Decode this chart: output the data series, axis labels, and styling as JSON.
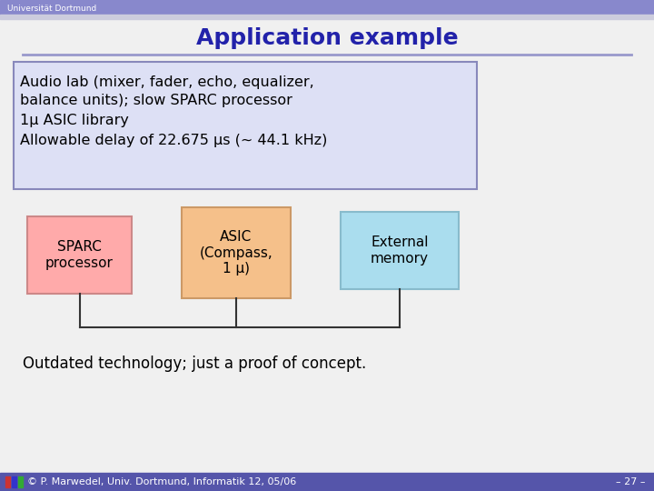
{
  "background_color": "#f0f0f0",
  "header_bar_color": "#8888cc",
  "header_text": "Universität Dortmund",
  "title": "Application example",
  "title_color": "#2222aa",
  "title_fontsize": 18,
  "divider_color": "#9999cc",
  "info_box_bg": "#dde0f5",
  "info_box_border": "#8888bb",
  "info_line1": "Audio lab (mixer, fader, echo, equalizer,",
  "info_line2": "balance units); slow SPARC processor",
  "info_line3": "1μ ASIC library",
  "info_line4": "Allowable delay of 22.675 μs (~ 44.1 kHz)",
  "sparc_box_bg": "#ffaaaa",
  "sparc_box_border": "#cc8888",
  "sparc_text": "SPARC\nprocessor",
  "asic_box_bg": "#f5c08a",
  "asic_box_border": "#cc9966",
  "asic_text": "ASIC\n(Compass,\n1 μ)",
  "ext_box_bg": "#aaddee",
  "ext_box_border": "#88bbcc",
  "ext_text": "External\nmemory",
  "bottom_text": "Outdated technology; just a proof of concept.",
  "footer_bar_color": "#5555aa",
  "footer_text": "© P. Marwedel, Univ. Dortmund, Informatik 12, 05/06",
  "footer_right": "– 27 –",
  "text_color": "#000000",
  "bus_color": "#333333"
}
